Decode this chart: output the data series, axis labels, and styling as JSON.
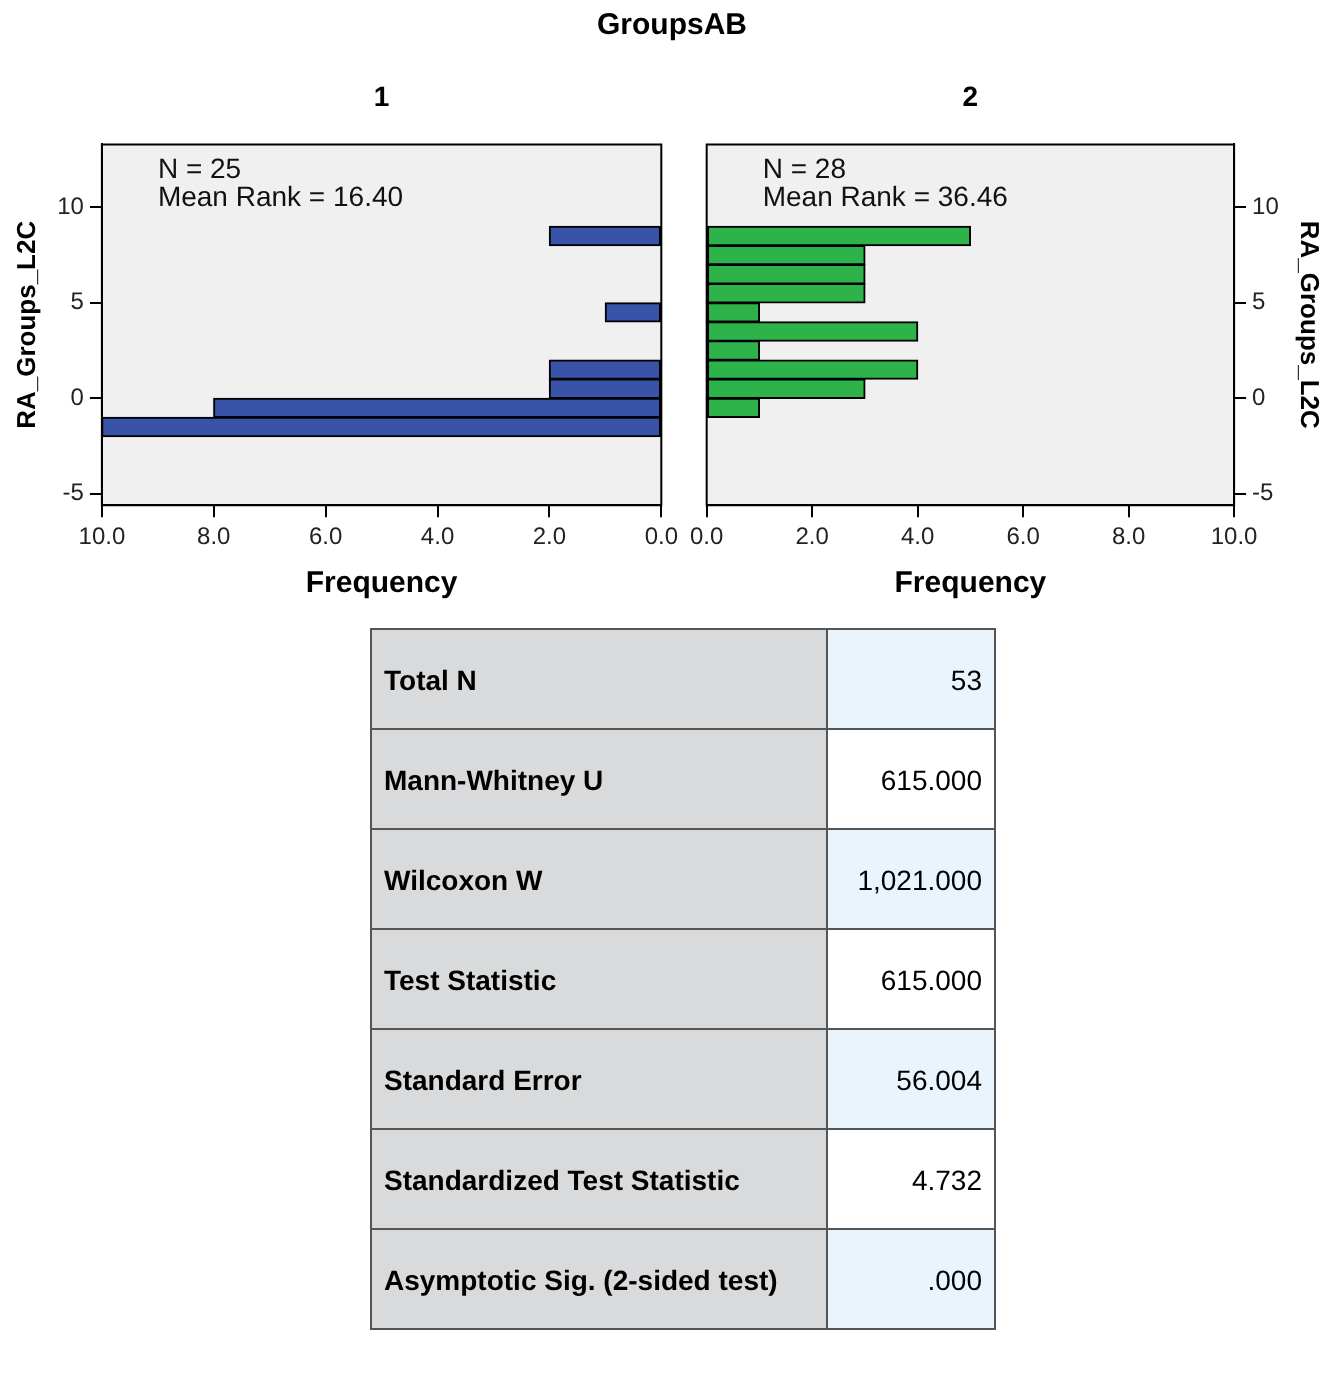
{
  "chart_data": [
    {
      "type": "histogram",
      "title": "GroupsAB",
      "subtitle": "1",
      "orientation": "horizontal",
      "bins": [
        -2,
        -1,
        0,
        1,
        2,
        3,
        4,
        5,
        6,
        7,
        8,
        9
      ],
      "values": [
        10,
        8,
        2,
        2,
        0,
        0,
        1,
        0,
        0,
        0,
        2
      ],
      "color": "#3953a8",
      "xlim": [
        10,
        0
      ],
      "xticks": [
        {
          "value": 10,
          "label": "10.0"
        },
        {
          "value": 8,
          "label": "8.0"
        },
        {
          "value": 6,
          "label": "6.0"
        },
        {
          "value": 4,
          "label": "4.0"
        },
        {
          "value": 2,
          "label": "2.0"
        },
        {
          "value": 0,
          "label": "0.0"
        }
      ],
      "ylim": [
        -5.6,
        13.3
      ],
      "yticks": [
        -5,
        0,
        5,
        10
      ],
      "xlabel": "Frequency",
      "ylabel": "RA_Groups_L2C",
      "annotations": [
        "N = 25",
        "Mean Rank = 16.40"
      ]
    },
    {
      "type": "histogram",
      "subtitle": "2",
      "orientation": "horizontal",
      "bins": [
        -2,
        -1,
        0,
        1,
        2,
        3,
        4,
        5,
        6,
        7,
        8,
        9
      ],
      "values": [
        0,
        1,
        3,
        4,
        1,
        4,
        1,
        3,
        3,
        3,
        5
      ],
      "color": "#2db34a",
      "xlim": [
        0,
        10
      ],
      "xticks": [
        {
          "value": 0,
          "label": "0.0"
        },
        {
          "value": 2,
          "label": "2.0"
        },
        {
          "value": 4,
          "label": "4.0"
        },
        {
          "value": 6,
          "label": "6.0"
        },
        {
          "value": 8,
          "label": "8.0"
        },
        {
          "value": 10,
          "label": "10.0"
        }
      ],
      "ylim": [
        -5.6,
        13.3
      ],
      "yticks": [
        -5,
        0,
        5,
        10
      ],
      "xlabel": "Frequency",
      "ylabel": "RA_Groups_L2C",
      "annotations": [
        "N = 28",
        "Mean Rank = 36.46"
      ]
    },
    {
      "type": "other",
      "annotations": [
        "Total N",
        "53",
        "Mann-Whitney U",
        "615.000",
        "Wilcoxon W",
        "1,021.000",
        "Test Statistic",
        "615.000",
        "Standard Error",
        "56.004",
        "Standardized Test Statistic",
        "4.732",
        "Asymptotic Sig. (2-sided test)",
        ".000"
      ]
    }
  ]
}
